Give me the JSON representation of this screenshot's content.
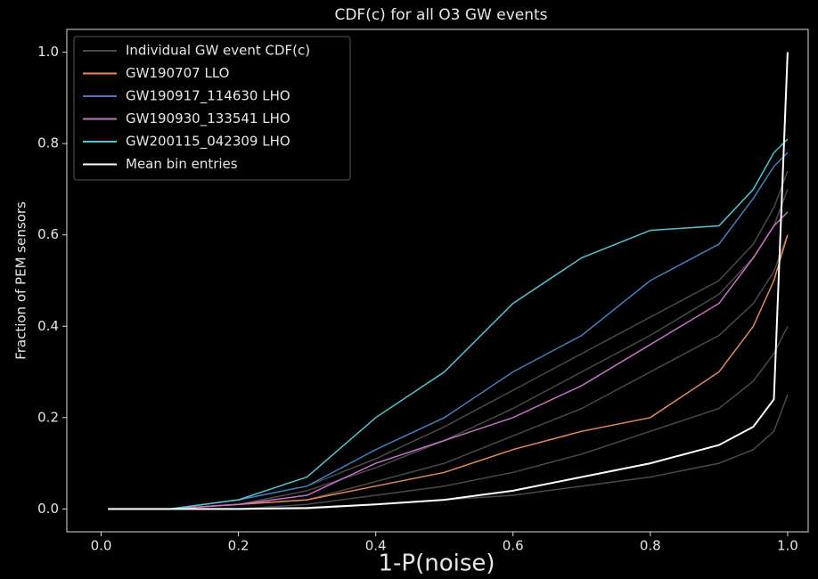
{
  "chart_data": {
    "type": "line",
    "title": "CDF(c) for all O3 GW events",
    "x_label": "1-P(noise)",
    "y_label": "Fraction of PEM sensors",
    "x": [
      0.01,
      0.1,
      0.2,
      0.3,
      0.4,
      0.5,
      0.6,
      0.7,
      0.8,
      0.9,
      0.95,
      0.98,
      1.0
    ],
    "xlim": [
      -0.05,
      1.03
    ],
    "xticks": [
      {
        "value": 0,
        "label": "0.0"
      },
      0.2,
      0.4,
      0.6,
      0.8,
      {
        "value": 1,
        "label": "1.0"
      }
    ],
    "ylim": [
      -0.05,
      1.05
    ],
    "yticks": [
      {
        "value": 0,
        "label": "0.0"
      },
      0.2,
      0.4,
      0.6,
      0.8,
      {
        "value": 1,
        "label": "1.0"
      }
    ],
    "legend": "upper left",
    "series": [
      {
        "name": "Individual GW event CDF(c)",
        "color": "#4a4a4a",
        "values": [
          0,
          0,
          0.01,
          0.02,
          0.06,
          0.1,
          0.16,
          0.22,
          0.3,
          0.38,
          0.45,
          0.52,
          0.6
        ]
      },
      {
        "color": "#4a4a4a",
        "values": [
          0,
          0,
          0,
          0.01,
          0.03,
          0.05,
          0.08,
          0.12,
          0.17,
          0.22,
          0.28,
          0.34,
          0.4
        ]
      },
      {
        "color": "#4a4a4a",
        "values": [
          0,
          0,
          0.01,
          0.04,
          0.09,
          0.15,
          0.22,
          0.3,
          0.38,
          0.47,
          0.55,
          0.62,
          0.7
        ]
      },
      {
        "color": "#4a4a4a",
        "values": [
          0,
          0,
          0,
          0,
          0.01,
          0.02,
          0.03,
          0.05,
          0.07,
          0.1,
          0.13,
          0.17,
          0.25
        ]
      },
      {
        "color": "#4a4a4a",
        "values": [
          0,
          0,
          0.02,
          0.05,
          0.11,
          0.18,
          0.26,
          0.34,
          0.42,
          0.5,
          0.58,
          0.66,
          0.74
        ]
      },
      {
        "name": "GW190707 LLO",
        "color": "#e8885a",
        "values": [
          0,
          0,
          0.01,
          0.02,
          0.05,
          0.08,
          0.13,
          0.17,
          0.2,
          0.3,
          0.4,
          0.5,
          0.6
        ]
      },
      {
        "name": "GW190917_114630 LHO",
        "color": "#3f7fc0",
        "values": [
          0,
          0,
          0.02,
          0.05,
          0.13,
          0.2,
          0.3,
          0.38,
          0.5,
          0.58,
          0.68,
          0.75,
          0.78
        ]
      },
      {
        "name": "GW190930_133541 LHO",
        "color": "#c86fc8",
        "values": [
          0,
          0,
          0.01,
          0.03,
          0.1,
          0.15,
          0.2,
          0.27,
          0.36,
          0.45,
          0.55,
          0.62,
          0.65
        ]
      },
      {
        "name": "GW200115_042309 LHO",
        "color": "#4fc6d0",
        "values": [
          0,
          0,
          0.02,
          0.07,
          0.2,
          0.3,
          0.45,
          0.55,
          0.61,
          0.62,
          0.7,
          0.78,
          0.81
        ]
      },
      {
        "name": "Mean bin entries",
        "color": "#ffffff",
        "values": [
          0,
          0,
          0,
          0.002,
          0.01,
          0.02,
          0.04,
          0.07,
          0.1,
          0.14,
          0.18,
          0.24,
          1.0
        ]
      }
    ]
  }
}
